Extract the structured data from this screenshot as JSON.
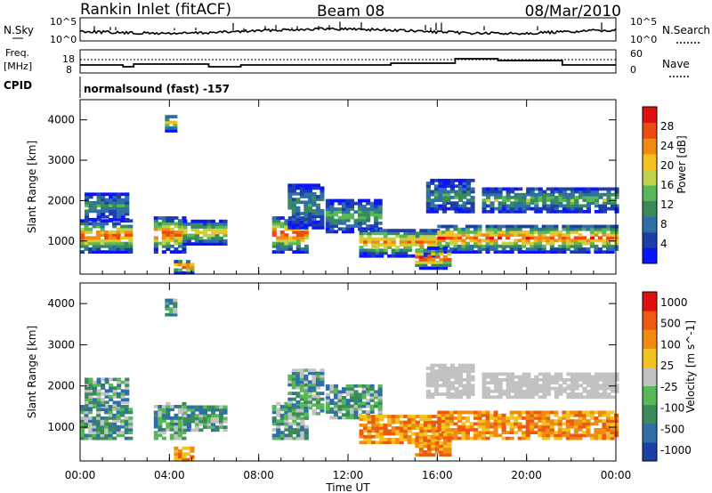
{
  "header": {
    "station": "Rankin Inlet (fitACF)",
    "beam": "Beam 08",
    "date": "08/Mar/2010"
  },
  "status_panel": {
    "noise_label": "N.Sky",
    "noise_right_label": "N.Search",
    "noise_ticks": [
      "10^5",
      "10^0"
    ],
    "freq_label_1": "Freq.",
    "freq_label_2": "[MHz]",
    "freq_ticks_left": [
      "18",
      "8"
    ],
    "freq_ticks_right": [
      "60",
      "0"
    ],
    "nave_label": "Nave",
    "cpid_label": "CPID",
    "cpid_text": "normalsound (fast) -157"
  },
  "colors": {
    "power_scale": [
      "#0a14ff",
      "#1e3ea8",
      "#2f6fa8",
      "#3a8a5a",
      "#58b858",
      "#c0d24a",
      "#f4c21e",
      "#f08a10",
      "#ec4a10",
      "#e01010"
    ],
    "velocity_scale": [
      "#1e3ea8",
      "#2f6fa8",
      "#3a8a5a",
      "#58b858",
      "#c2c2c2",
      "#f4c21e",
      "#f08a10",
      "#ec5a10",
      "#e01010"
    ]
  },
  "chart_data": [
    {
      "type": "heatmap",
      "title": "Power",
      "ylabel": "Slant Range [km]",
      "yticks": [
        "1000",
        "2000",
        "3000",
        "4000"
      ],
      "ylim": [
        180,
        4500
      ],
      "colorbar_label": "Power [dB]",
      "colorbar_ticks": [
        "4",
        "8",
        "12",
        "16",
        "20",
        "24",
        "28"
      ],
      "colorbar_range": [
        0,
        32
      ]
    },
    {
      "type": "heatmap",
      "title": "Velocity",
      "ylabel": "Slant Range [km]",
      "yticks": [
        "1000",
        "2000",
        "3000",
        "4000"
      ],
      "ylim": [
        180,
        4500
      ],
      "colorbar_label": "Velocity [m s^-1]",
      "colorbar_ticks": [
        "1000",
        "500",
        "100",
        "25",
        "-25",
        "-100",
        "-500",
        "-1000"
      ]
    }
  ],
  "time_axis": {
    "ticks": [
      "00:00",
      "04:00",
      "08:00",
      "12:00",
      "16:00",
      "20:00",
      "00:00"
    ],
    "xlabel": "Time UT"
  }
}
